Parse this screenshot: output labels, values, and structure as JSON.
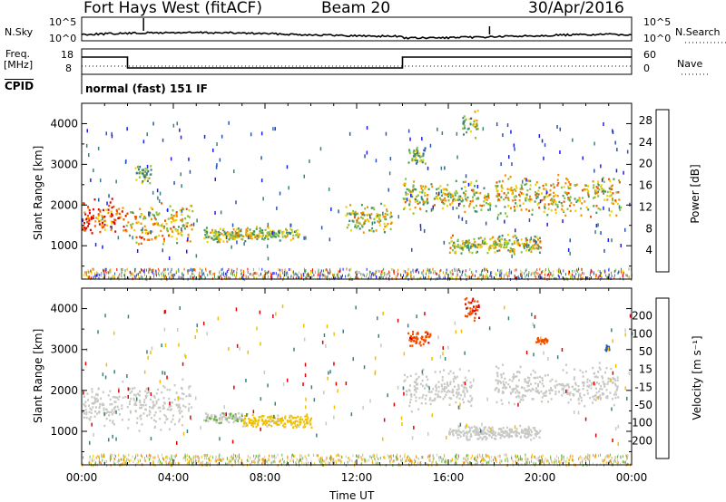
{
  "header": {
    "radar": "Fort Hays West (fitACF)",
    "beam": "Beam 20",
    "date": "30/Apr/2016"
  },
  "noise_panel": {
    "left_label": "N.Sky",
    "right_label": "N.Search",
    "ticks_left": [
      "10^5",
      "10^0"
    ],
    "ticks_right": [
      "10^5",
      "10^0"
    ]
  },
  "freq_panel": {
    "left_label_1": "Freq.",
    "left_label_2": "[MHz]",
    "right_label": "Nave",
    "ticks_left": [
      "18",
      "8"
    ],
    "ticks_right": [
      "60",
      "0"
    ],
    "cpid_label": "CPID",
    "cpid_text": "normal (fast) 151 IF"
  },
  "colors": {
    "power": [
      "#1d1df0",
      "#2a55b0",
      "#3b8080",
      "#4a9a60",
      "#8ac040",
      "#f0d000",
      "#f09000",
      "#f05000",
      "#e00000"
    ],
    "velocity": [
      "#1d1df0",
      "#2a55b0",
      "#3b8080",
      "#6ab040",
      "#c8c8c4",
      "#f0c000",
      "#f09000",
      "#f05000",
      "#e00000"
    ],
    "ground": "#c8c8c4"
  },
  "chart_data": [
    {
      "type": "heatmap",
      "name": "power",
      "xlabel": "",
      "ylabel": "Slant Range [km]",
      "xlim": [
        0,
        24
      ],
      "ylim": [
        180,
        4500
      ],
      "yticks": [
        "4000",
        "3000",
        "2000",
        "1000"
      ],
      "ytick_values": [
        4000,
        3000,
        2000,
        1000
      ],
      "colorbar": {
        "label": "Power [dB]",
        "ticks": [
          "28",
          "24",
          "20",
          "16",
          "12",
          "8",
          "4"
        ],
        "tick_values": [
          28,
          24,
          20,
          16,
          12,
          8,
          4
        ],
        "range": [
          0,
          30
        ]
      },
      "patches": [
        {
          "t0": 0.0,
          "t1": 1.9,
          "r0": 1200,
          "r1": 2200,
          "level": 0.85
        },
        {
          "t0": 1.9,
          "t1": 4.8,
          "r0": 1000,
          "r1": 2100,
          "level": 0.65
        },
        {
          "t0": 2.3,
          "t1": 3.0,
          "r0": 2500,
          "r1": 3100,
          "level": 0.4
        },
        {
          "t0": 5.3,
          "t1": 9.5,
          "r0": 1100,
          "r1": 1500,
          "level": 0.5
        },
        {
          "t0": 11.5,
          "t1": 13.5,
          "r0": 1300,
          "r1": 2100,
          "level": 0.55
        },
        {
          "t0": 14.0,
          "t1": 17.8,
          "r0": 1800,
          "r1": 2700,
          "level": 0.55
        },
        {
          "t0": 14.2,
          "t1": 15.0,
          "r0": 3000,
          "r1": 3500,
          "level": 0.4
        },
        {
          "t0": 16.6,
          "t1": 17.3,
          "r0": 3600,
          "r1": 4400,
          "level": 0.45
        },
        {
          "t0": 16.0,
          "t1": 20.0,
          "r0": 800,
          "r1": 1300,
          "level": 0.55
        },
        {
          "t0": 18.0,
          "t1": 23.5,
          "r0": 1700,
          "r1": 2800,
          "level": 0.6
        }
      ]
    },
    {
      "type": "heatmap",
      "name": "velocity",
      "xlabel": "Time UT",
      "ylabel": "Slant Range [km]",
      "xlim": [
        0,
        24
      ],
      "ylim": [
        180,
        4500
      ],
      "xticks": [
        "00:00",
        "04:00",
        "08:00",
        "12:00",
        "16:00",
        "20:00",
        "00:00"
      ],
      "xtick_values": [
        0,
        4,
        8,
        12,
        16,
        20,
        24
      ],
      "yticks": [
        "4000",
        "3000",
        "2000",
        "1000"
      ],
      "ytick_values": [
        4000,
        3000,
        2000,
        1000
      ],
      "colorbar": {
        "label": "Velocity [m s⁻¹]",
        "ticks": [
          "200",
          "100",
          "50",
          "15",
          "-15",
          "-50",
          "-100",
          "-200"
        ],
        "tick_values": [
          200,
          100,
          50,
          15,
          -15,
          -50,
          -100,
          -200
        ],
        "range": [
          -250,
          250
        ]
      },
      "patches": [
        {
          "t0": 0.0,
          "t1": 1.9,
          "r0": 1100,
          "r1": 2300,
          "vel": 0
        },
        {
          "t0": 1.9,
          "t1": 4.8,
          "r0": 1000,
          "r1": 2300,
          "vel": 0
        },
        {
          "t0": 5.3,
          "t1": 7.0,
          "r0": 1200,
          "r1": 1500,
          "vel": 20
        },
        {
          "t0": 7.0,
          "t1": 10.0,
          "r0": 1100,
          "r1": 1450,
          "vel": -40
        },
        {
          "t0": 14.0,
          "t1": 17.0,
          "r0": 1500,
          "r1": 2600,
          "vel": 0
        },
        {
          "t0": 14.2,
          "t1": 15.2,
          "r0": 3100,
          "r1": 3500,
          "vel": -180
        },
        {
          "t0": 16.7,
          "t1": 17.4,
          "r0": 3700,
          "r1": 4300,
          "vel": -190
        },
        {
          "t0": 16.0,
          "t1": 20.0,
          "r0": 800,
          "r1": 1200,
          "vel": 0
        },
        {
          "t0": 18.0,
          "t1": 23.5,
          "r0": 1600,
          "r1": 2700,
          "vel": 0
        },
        {
          "t0": 19.8,
          "t1": 20.3,
          "r0": 3150,
          "r1": 3350,
          "vel": -180
        },
        {
          "t0": 22.8,
          "t1": 23.0,
          "r0": 2900,
          "r1": 3150,
          "vel": 180
        }
      ]
    }
  ]
}
